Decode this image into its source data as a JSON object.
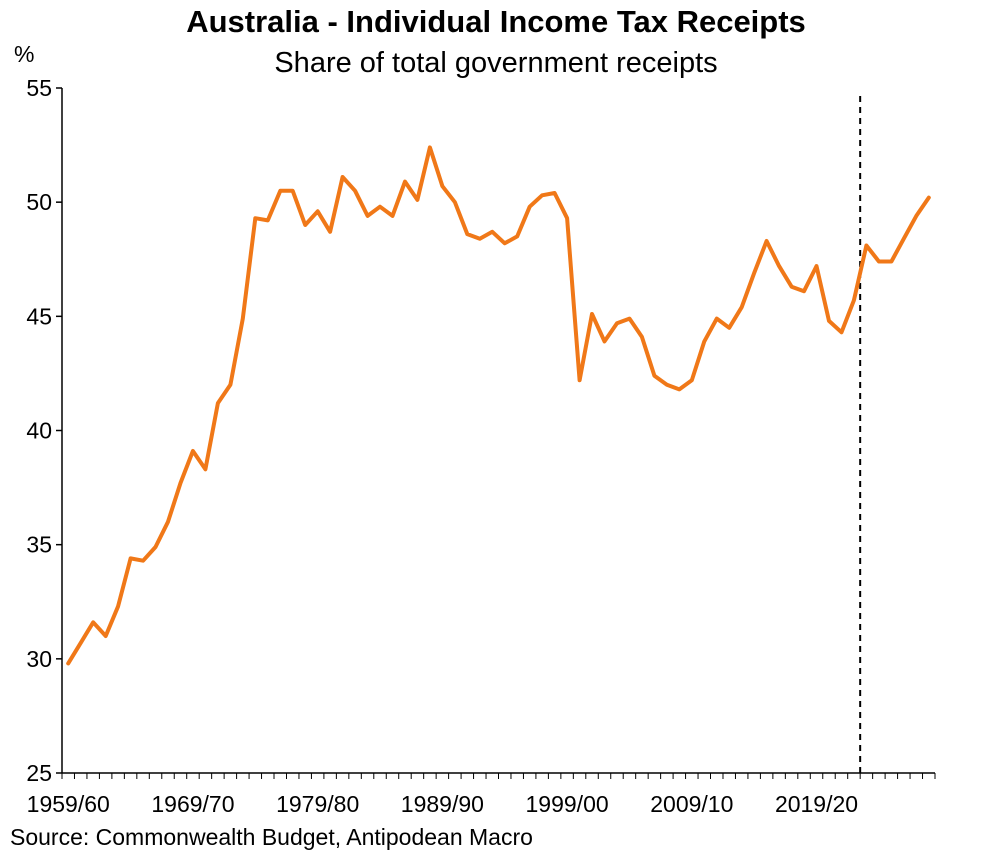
{
  "title": "Australia - Individual Income Tax Receipts",
  "subtitle": "Share of total government receipts",
  "source": "Source: Commonwealth Budget, Antipodean Macro",
  "chart_data": {
    "type": "line",
    "title": "Australia - Individual Income Tax Receipts",
    "subtitle": "Share of total government receipts",
    "ylabel": "%",
    "xlabel": "",
    "ylim": [
      25,
      55
    ],
    "yticks": [
      25,
      30,
      35,
      40,
      45,
      50,
      55
    ],
    "xtick_labels": [
      "1959/60",
      "1969/70",
      "1979/80",
      "1989/90",
      "1999/00",
      "2009/10",
      "2019/20"
    ],
    "grid": false,
    "legend": "none",
    "line_color": "#F07818",
    "projection_start": "2023/24",
    "x": [
      "1959/60",
      "1960/61",
      "1961/62",
      "1962/63",
      "1963/64",
      "1964/65",
      "1965/66",
      "1966/67",
      "1967/68",
      "1968/69",
      "1969/70",
      "1970/71",
      "1971/72",
      "1972/73",
      "1973/74",
      "1974/75",
      "1975/76",
      "1976/77",
      "1977/78",
      "1978/79",
      "1979/80",
      "1980/81",
      "1981/82",
      "1982/83",
      "1983/84",
      "1984/85",
      "1985/86",
      "1986/87",
      "1987/88",
      "1988/89",
      "1989/90",
      "1990/91",
      "1991/92",
      "1992/93",
      "1993/94",
      "1994/95",
      "1995/96",
      "1996/97",
      "1997/98",
      "1998/99",
      "1999/00",
      "2000/01",
      "2001/02",
      "2002/03",
      "2003/04",
      "2004/05",
      "2005/06",
      "2006/07",
      "2007/08",
      "2008/09",
      "2009/10",
      "2010/11",
      "2011/12",
      "2012/13",
      "2013/14",
      "2014/15",
      "2015/16",
      "2016/17",
      "2017/18",
      "2018/19",
      "2019/20",
      "2020/21",
      "2021/22",
      "2022/23",
      "2023/24",
      "2024/25",
      "2025/26",
      "2026/27",
      "2027/28",
      "2028/29"
    ],
    "series": [
      {
        "values": [
          29.8,
          30.7,
          31.6,
          31.0,
          32.3,
          34.4,
          34.3,
          34.9,
          36.0,
          37.7,
          39.1,
          38.3,
          41.2,
          42.0,
          44.9,
          49.3,
          49.2,
          50.5,
          50.5,
          49.0,
          49.6,
          48.7,
          51.1,
          50.5,
          49.4,
          49.8,
          49.4,
          50.9,
          50.1,
          52.4,
          50.7,
          50.0,
          48.6,
          48.4,
          48.7,
          48.2,
          48.5,
          49.8,
          50.3,
          50.4,
          49.3,
          42.2,
          45.1,
          43.9,
          44.7,
          44.9,
          44.1,
          42.4,
          42.0,
          41.8,
          42.2,
          43.9,
          44.9,
          44.5,
          45.4,
          46.9,
          48.3,
          47.2,
          46.3,
          46.1,
          47.2,
          44.8,
          44.3,
          45.7,
          48.1,
          47.4,
          47.4,
          48.4,
          49.4,
          50.2
        ]
      }
    ]
  }
}
